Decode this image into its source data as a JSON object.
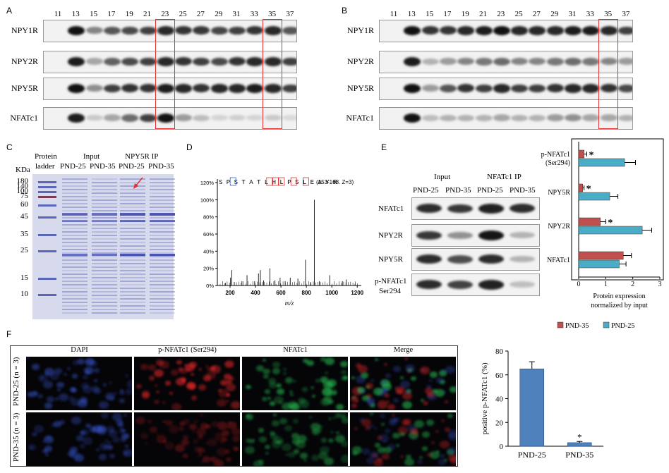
{
  "panels": {
    "A": "A",
    "B": "B",
    "C": "C",
    "D": "D",
    "E": "E",
    "F": "F"
  },
  "blot_lanes": [
    "11",
    "13",
    "15",
    "17",
    "19",
    "21",
    "23",
    "25",
    "27",
    "29",
    "31",
    "33",
    "35",
    "37"
  ],
  "blot_rows": [
    "NPY1R",
    "NPY2R",
    "NPY5R",
    "NFATc1"
  ],
  "panel_c": {
    "kda_label": "KDa",
    "ladder_header": "Protein ladder",
    "ladder_header_1": "Protein",
    "ladder_header_2": "ladder",
    "input_header": "Input",
    "ip_header": "NPY5R IP",
    "sub_headers": [
      "PND-25",
      "PND-35",
      "PND-25",
      "PND-35"
    ],
    "ladder_sizes": [
      "180",
      "140",
      "100",
      "75",
      "60",
      "45",
      "35",
      "25",
      "15",
      "10"
    ]
  },
  "panel_d": {
    "sequence": "SPSTATLHLPSLEAYR",
    "sequence_note": "(153-168.  Z=3)",
    "y_ticks": [
      "0%",
      "20%",
      "40%",
      "60%",
      "80%",
      "100%",
      "120%"
    ],
    "x_ticks": [
      "200",
      "400",
      "600",
      "800",
      "1000",
      "1200"
    ],
    "xlabel": "m/z"
  },
  "panel_e": {
    "input_header": "Input",
    "ip_header": "NFATc1 IP",
    "sub_headers": [
      "PND-25",
      "PND-35",
      "PND-25",
      "PND-35"
    ],
    "rows": [
      "NFATc1",
      "NPY2R",
      "NPY5R"
    ],
    "row4_line1": "p-NFATc1",
    "row4_line2": "Ser294"
  },
  "chart_data": [
    {
      "type": "bar",
      "orientation": "horizontal",
      "categories": [
        "p-NFATc1 (Ser294)",
        "NPY5R",
        "NPY2R",
        "NFATc1"
      ],
      "category_lines": [
        [
          "p-NFATc1",
          "(Ser294)"
        ],
        [
          "NPY5R"
        ],
        [
          "NPY2R"
        ],
        [
          "NFATc1"
        ]
      ],
      "series": [
        {
          "name": "PND-35",
          "color": "#c0504d",
          "values": [
            0.2,
            0.15,
            0.8,
            1.65
          ],
          "errors": [
            0.1,
            0.05,
            0.2,
            0.3
          ],
          "significance": [
            "*",
            "*",
            "*",
            ""
          ]
        },
        {
          "name": "PND-25",
          "color": "#4bacc6",
          "values": [
            1.7,
            1.15,
            2.35,
            1.5
          ],
          "errors": [
            0.4,
            0.3,
            0.35,
            0.25
          ]
        }
      ],
      "xlim": [
        0,
        3
      ],
      "x_ticks": [
        "0",
        "1",
        "2",
        "3"
      ],
      "xlabel_line1": "Protein expression",
      "xlabel_line2": "normalized by input"
    },
    {
      "type": "bar",
      "categories": [
        "PND-25",
        "PND-35"
      ],
      "values": [
        65,
        3
      ],
      "errors": [
        6,
        1
      ],
      "significance": [
        "",
        "*"
      ],
      "color": "#4f81bd",
      "ylabel": "positive p-NFATc1 (%)",
      "ylim": [
        0,
        80
      ],
      "y_ticks": [
        "0",
        "20",
        "40",
        "60",
        "80"
      ]
    }
  ],
  "panel_f": {
    "columns": [
      "DAPI",
      "p-NFATc1 (Ser294)",
      "NFATc1",
      "Merge"
    ],
    "rows": [
      "PND-25 (n = 3)",
      "PND-35 (n = 3)"
    ]
  }
}
